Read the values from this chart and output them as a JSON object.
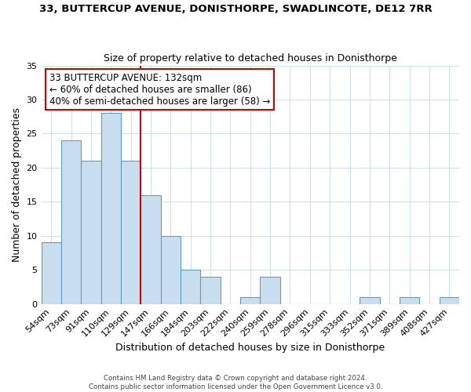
{
  "title": "33, BUTTERCUP AVENUE, DONISTHORPE, SWADLINCOTE, DE12 7RR",
  "subtitle": "Size of property relative to detached houses in Donisthorpe",
  "xlabel": "Distribution of detached houses by size in Donisthorpe",
  "ylabel": "Number of detached properties",
  "bar_labels": [
    "54sqm",
    "73sqm",
    "91sqm",
    "110sqm",
    "129sqm",
    "147sqm",
    "166sqm",
    "184sqm",
    "203sqm",
    "222sqm",
    "240sqm",
    "259sqm",
    "278sqm",
    "296sqm",
    "315sqm",
    "333sqm",
    "352sqm",
    "371sqm",
    "389sqm",
    "408sqm",
    "427sqm"
  ],
  "bar_values": [
    9,
    24,
    21,
    28,
    21,
    16,
    10,
    5,
    4,
    0,
    1,
    4,
    0,
    0,
    0,
    0,
    1,
    0,
    1,
    0,
    1
  ],
  "bar_color": "#c9dff0",
  "bar_edge_color": "#5a9ec8",
  "vline_x": 4.5,
  "vline_color": "#cc0000",
  "ylim": [
    0,
    35
  ],
  "yticks": [
    0,
    5,
    10,
    15,
    20,
    25,
    30,
    35
  ],
  "annotation_title": "33 BUTTERCUP AVENUE: 132sqm",
  "annotation_line1": "← 60% of detached houses are smaller (86)",
  "annotation_line2": "40% of semi-detached houses are larger (58) →",
  "annotation_box_color": "#ffffff",
  "annotation_box_edge_color": "#cc0000",
  "footer_line1": "Contains HM Land Registry data © Crown copyright and database right 2024.",
  "footer_line2": "Contains public sector information licensed under the Open Government Licence v3.0.",
  "background_color": "#ffffff",
  "grid_color": "#cce0ee"
}
